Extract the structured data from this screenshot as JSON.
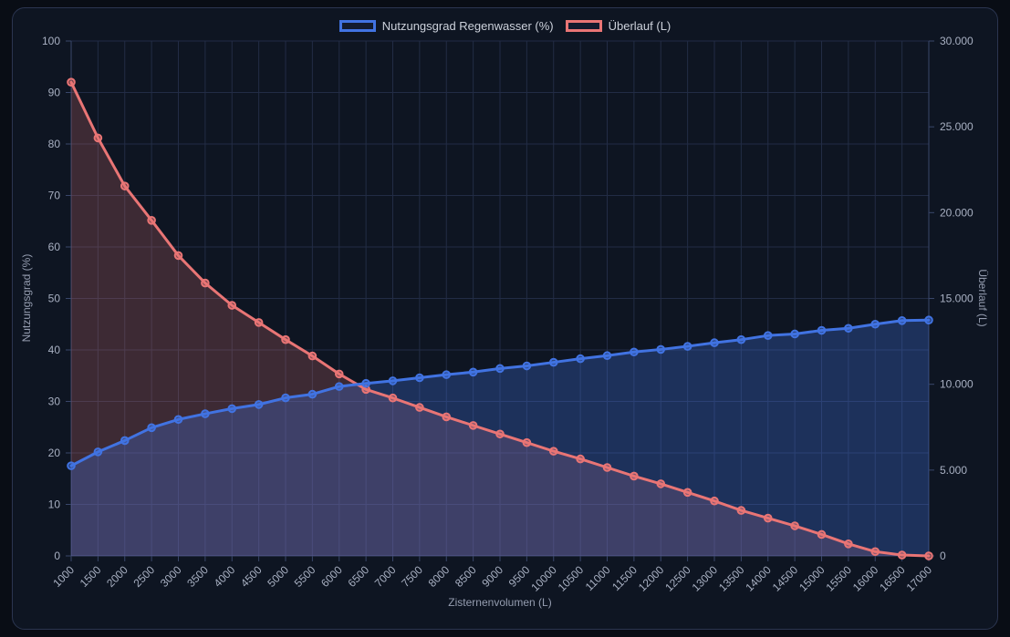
{
  "page": {
    "background": "#090d15"
  },
  "card": {
    "background": "#0e1522",
    "border_color": "#2b3550"
  },
  "colors": {
    "grid": "#222c45",
    "axis_border": "#39466a",
    "tick_text": "#a8b0c2",
    "axis_title_text": "#959db0",
    "legend_text": "#ccd1db"
  },
  "chart_data": {
    "type": "line",
    "title": "",
    "legend_position": "top",
    "grid": true,
    "xlabel": "Zisternenvolumen (L)",
    "categories": [
      1000,
      1500,
      2000,
      2500,
      3000,
      3500,
      4000,
      4500,
      5000,
      5500,
      6000,
      6500,
      7000,
      7500,
      8000,
      8500,
      9000,
      9500,
      10000,
      10500,
      11000,
      11500,
      12000,
      12500,
      13000,
      13500,
      14000,
      14500,
      15000,
      15500,
      16000,
      16500,
      17000
    ],
    "x_tick_labels": [
      "1000",
      "1500",
      "2000",
      "2500",
      "3000",
      "3500",
      "4000",
      "4500",
      "5000",
      "5500",
      "6000",
      "6500",
      "7000",
      "7500",
      "8000",
      "8500",
      "9000",
      "9500",
      "10000",
      "10500",
      "11000",
      "11500",
      "12000",
      "12500",
      "13000",
      "13500",
      "14000",
      "14500",
      "15000",
      "15500",
      "16000",
      "16500",
      "17000"
    ],
    "y_left": {
      "label": "Nutzungsgrad (%)",
      "min": 0,
      "max": 100,
      "step": 10,
      "tick_labels": [
        "0",
        "10",
        "20",
        "30",
        "40",
        "50",
        "60",
        "70",
        "80",
        "90",
        "100"
      ]
    },
    "y_right": {
      "label": "Überlauf (L)",
      "min": 0,
      "max": 30000,
      "step": 5000,
      "tick_labels": [
        "0",
        "5.000",
        "10.000",
        "15.000",
        "20.000",
        "25.000",
        "30.000"
      ]
    },
    "series": [
      {
        "name": "Nutzungsgrad Regenwasser (%)",
        "axis": "left",
        "color": "#4173e2",
        "fill_opacity": 0.3,
        "values": [
          17.5,
          20.2,
          22.4,
          24.9,
          26.5,
          27.6,
          28.6,
          29.4,
          30.7,
          31.4,
          32.9,
          33.5,
          34.0,
          34.6,
          35.2,
          35.7,
          36.4,
          36.9,
          37.6,
          38.3,
          38.9,
          39.6,
          40.1,
          40.7,
          41.4,
          42.0,
          42.8,
          43.1,
          43.8,
          44.2,
          45.0,
          45.7,
          45.8
        ]
      },
      {
        "name": "Überlauf (L)",
        "axis": "right",
        "color": "#e97575",
        "fill_opacity": 0.22,
        "values": [
          27600,
          24350,
          21550,
          19550,
          17500,
          15900,
          14600,
          13600,
          12600,
          11650,
          10600,
          9700,
          9200,
          8650,
          8100,
          7600,
          7100,
          6600,
          6100,
          5650,
          5150,
          4650,
          4200,
          3700,
          3200,
          2650,
          2200,
          1750,
          1250,
          700,
          250,
          50,
          0
        ]
      }
    ]
  }
}
